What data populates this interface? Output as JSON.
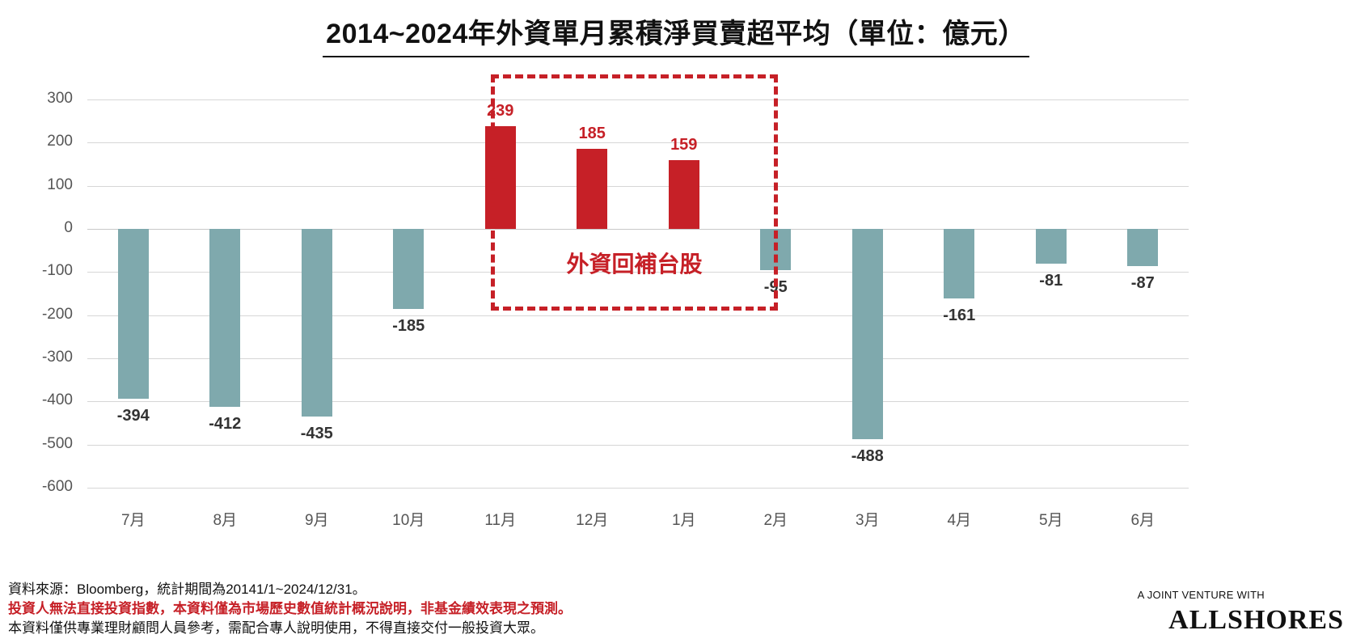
{
  "header": {
    "title": "2014~2024年外資單月累積淨買賣超平均（單位：億元）"
  },
  "chart_data": {
    "type": "bar",
    "title": "2014~2024年外資單月累積淨買賣超平均（單位：億元）",
    "xlabel": "",
    "ylabel": "",
    "ylim": [
      -600,
      300
    ],
    "yticks": [
      "300",
      "200",
      "100",
      "0",
      "-100",
      "-200",
      "-300",
      "-400",
      "-500",
      "-600"
    ],
    "categories": [
      "7月",
      "8月",
      "9月",
      "10月",
      "11月",
      "12月",
      "1月",
      "2月",
      "3月",
      "4月",
      "5月",
      "6月"
    ],
    "values": [
      -394,
      -412,
      -435,
      -185,
      239,
      185,
      159,
      -95,
      -488,
      -161,
      -81,
      -87
    ],
    "labels": [
      "-394",
      "-412",
      "-435",
      "-185",
      "239",
      "185",
      "159",
      "-95",
      "-488",
      "-161",
      "-81",
      "-87"
    ],
    "grid": true,
    "legend": null,
    "colors": {
      "positive": "#c62027",
      "negative": "#7fa9ad"
    },
    "annotation": {
      "text": "外資回補台股",
      "range": [
        "11月",
        "1月"
      ],
      "color": "#c62027"
    }
  },
  "footer": {
    "source": "資料來源：Bloomberg，統計期間為20141/1~2024/12/31。",
    "disclaimer_red": "投資人無法直接投資指數，本資料僅為市場歷史數值統計概況說明，非基金績效表現之預測。",
    "disclaimer": "本資料僅供專業理財顧問人員參考，需配合專人說明使用，不得直接交付一般投資大眾。"
  },
  "brand": {
    "tagline": "A JOINT VENTURE WITH",
    "name": "ALLSHORES"
  }
}
